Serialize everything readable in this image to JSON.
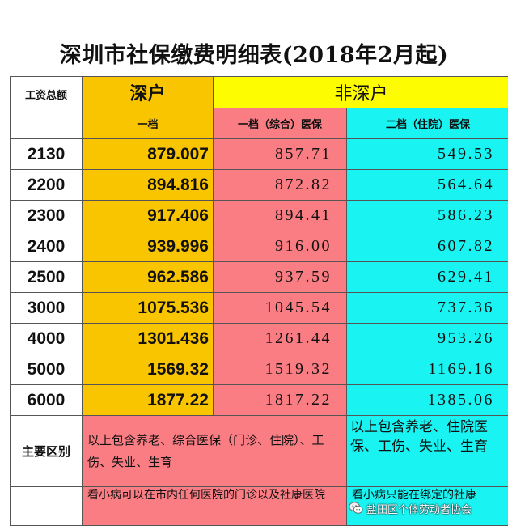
{
  "title": "深圳市社保缴费明细表(2018年2月起)",
  "headers": {
    "wage_total": "工资总额",
    "shenhu": "深户",
    "feishenhu": "非深户",
    "tier1": "一档",
    "tier1_comp": "一档（综合）医保",
    "tier2_hosp": "二档（住院）医保"
  },
  "rows": [
    {
      "wage": "2130",
      "tier1": "879.007",
      "tier1_comp": "857.71",
      "tier2_hosp": "549.53"
    },
    {
      "wage": "2200",
      "tier1": "894.816",
      "tier1_comp": "872.82",
      "tier2_hosp": "564.64"
    },
    {
      "wage": "2300",
      "tier1": "917.406",
      "tier1_comp": "894.41",
      "tier2_hosp": "586.23"
    },
    {
      "wage": "2400",
      "tier1": "939.996",
      "tier1_comp": "916.00",
      "tier2_hosp": "607.82"
    },
    {
      "wage": "2500",
      "tier1": "962.586",
      "tier1_comp": "937.59",
      "tier2_hosp": "629.41"
    },
    {
      "wage": "3000",
      "tier1": "1075.536",
      "tier1_comp": "1045.54",
      "tier2_hosp": "737.36"
    },
    {
      "wage": "4000",
      "tier1": "1301.436",
      "tier1_comp": "1261.44",
      "tier2_hosp": "953.26"
    },
    {
      "wage": "5000",
      "tier1": "1569.32",
      "tier1_comp": "1519.32",
      "tier2_hosp": "1169.16"
    },
    {
      "wage": "6000",
      "tier1": "1877.22",
      "tier1_comp": "1817.22",
      "tier2_hosp": "1385.06"
    }
  ],
  "main_diff": {
    "label": "主要区别",
    "comp_note": "以上包含养老、综合医保（门诊、住院）、工伤、失业、生育",
    "hosp_note": "以上包含养老、住院医保、工伤、失业、生育"
  },
  "clinic": {
    "comp_note": "看小病可以在市内任何医院的门诊以及社康医院",
    "hosp_note": "看小病只能在绑定的社康"
  },
  "watermark": "盐田区个体劳动者协会",
  "colors": {
    "shenhu": "#f9c400",
    "feishenhu_header": "#fdfc00",
    "tier1_comp": "#fb7d84",
    "tier2_hosp": "#19f3f1"
  }
}
